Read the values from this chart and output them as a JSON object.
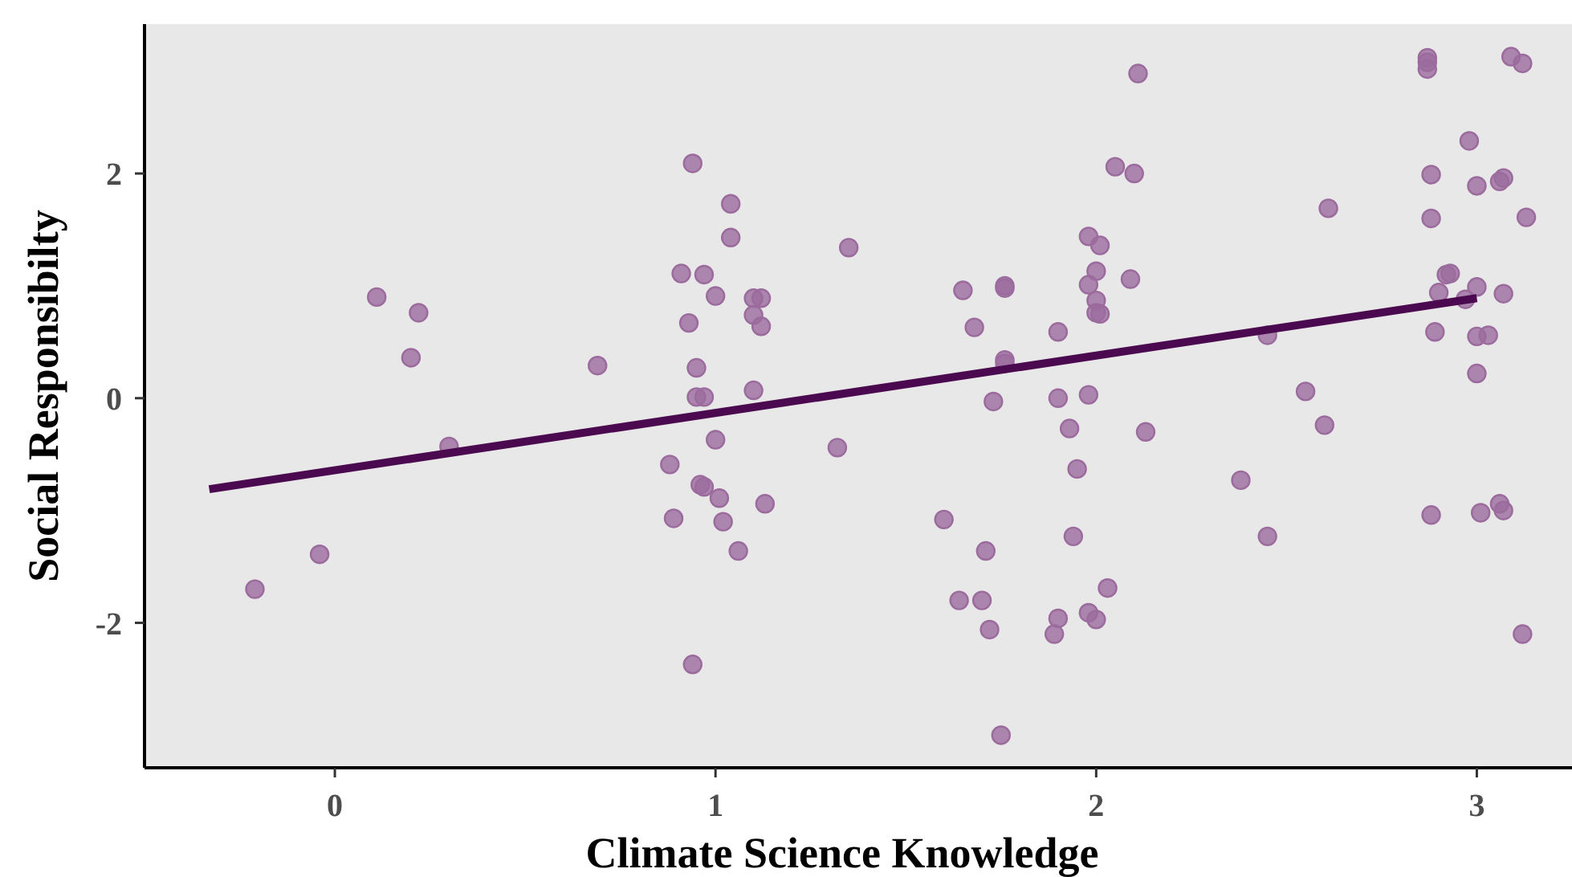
{
  "chart_data": {
    "type": "scatter",
    "xlabel": "Climate Science Knowledge",
    "ylabel": "Social Responsibilty",
    "xlim": [
      -0.5,
      3.25
    ],
    "ylim": [
      -3.29,
      3.33
    ],
    "xticks": [
      0,
      1,
      2,
      3
    ],
    "yticks": [
      -2,
      0,
      2
    ],
    "grid": false,
    "series": [
      {
        "marker": "circle",
        "color": "#9b6b9d",
        "x": [
          -0.21,
          -0.04,
          0.11,
          0.22,
          0.2,
          0.3,
          0.69,
          0.94,
          1.04,
          1.04,
          0.91,
          0.97,
          1.0,
          1.1,
          1.12,
          1.1,
          1.12,
          0.93,
          0.95,
          0.95,
          0.97,
          1.1,
          1.0,
          0.88,
          0.96,
          0.97,
          1.01,
          1.13,
          0.89,
          1.02,
          1.06,
          0.94,
          1.35,
          1.32,
          1.65,
          1.76,
          1.76,
          1.68,
          1.76,
          1.76,
          1.9,
          1.73,
          1.9,
          1.93,
          1.95,
          1.6,
          1.71,
          1.94,
          1.64,
          1.7,
          1.72,
          1.9,
          1.89,
          1.75,
          2.11,
          2.05,
          2.1,
          1.98,
          2.01,
          2.0,
          1.98,
          2.09,
          2.0,
          2.0,
          2.01,
          1.98,
          2.13,
          2.03,
          1.98,
          2.0,
          2.61,
          2.45,
          2.55,
          2.6,
          2.38,
          2.45,
          2.87,
          2.87,
          2.87,
          3.09,
          3.12,
          2.98,
          2.88,
          3.0,
          3.06,
          3.07,
          2.88,
          3.13,
          2.92,
          2.93,
          2.9,
          3.0,
          2.97,
          3.07,
          2.89,
          3.0,
          3.03,
          3.0,
          2.88,
          3.01,
          3.06,
          3.07,
          3.12
        ],
        "values": [
          -1.7,
          -1.39,
          0.9,
          0.76,
          0.36,
          -0.43,
          0.29,
          2.09,
          1.73,
          1.43,
          1.11,
          1.1,
          0.91,
          0.89,
          0.89,
          0.74,
          0.64,
          0.67,
          0.27,
          0.01,
          0.01,
          0.07,
          -0.37,
          -0.59,
          -0.77,
          -0.79,
          -0.89,
          -0.94,
          -1.07,
          -1.1,
          -1.36,
          -2.37,
          1.34,
          -0.44,
          0.96,
          1.0,
          0.98,
          0.63,
          0.34,
          0.31,
          0.59,
          -0.03,
          0.0,
          -0.27,
          -0.63,
          -1.08,
          -1.36,
          -1.23,
          -1.8,
          -1.8,
          -2.06,
          -1.96,
          -2.1,
          -3.0,
          2.89,
          2.06,
          2.0,
          1.44,
          1.36,
          1.13,
          1.01,
          1.06,
          0.87,
          0.76,
          0.75,
          0.03,
          -0.3,
          -1.69,
          -1.91,
          -1.97,
          1.69,
          0.56,
          0.06,
          -0.24,
          -0.73,
          -1.23,
          3.03,
          2.99,
          2.93,
          3.04,
          2.98,
          2.29,
          1.99,
          1.89,
          1.93,
          1.96,
          1.6,
          1.61,
          1.1,
          1.11,
          0.94,
          0.99,
          0.88,
          0.93,
          0.59,
          0.55,
          0.56,
          0.22,
          -1.04,
          -1.02,
          -0.94,
          -1.0,
          -2.1
        ]
      },
      {
        "type": "line",
        "color": "#4b0a4f",
        "x": [
          -0.33,
          3.0
        ],
        "values": [
          -0.81,
          0.89
        ]
      }
    ]
  }
}
